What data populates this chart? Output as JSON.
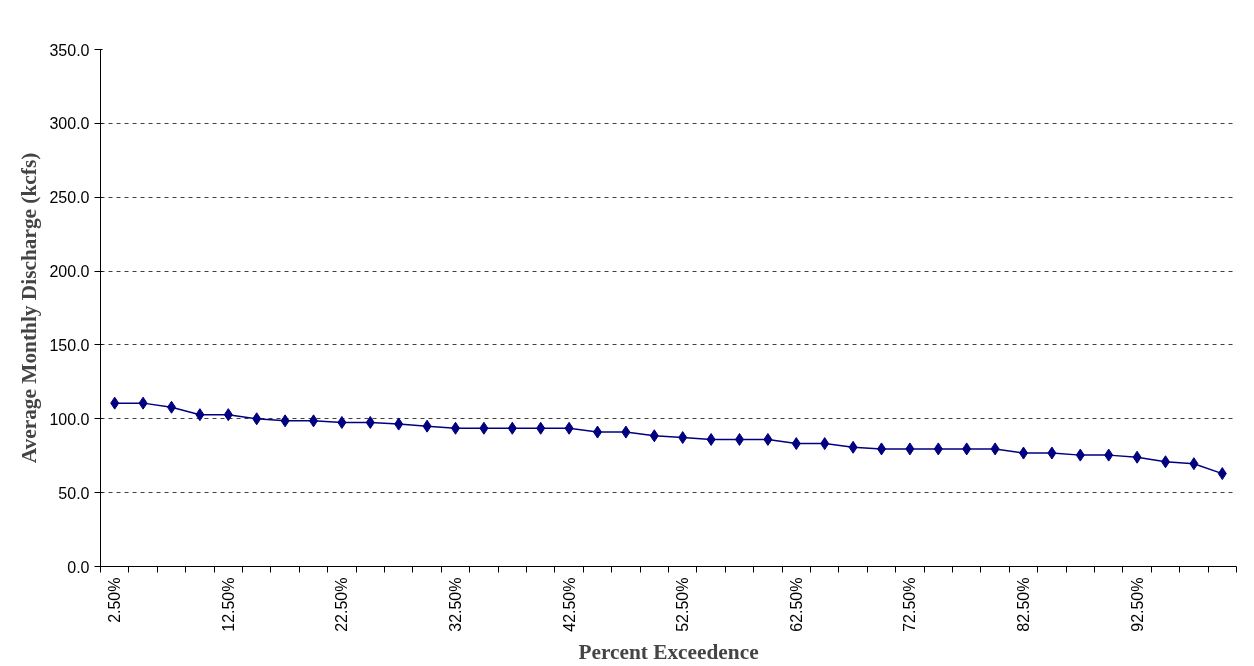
{
  "chart_data": {
    "type": "line",
    "xlabel": "Percent Exceedence",
    "ylabel": "Average Monthly Discharge (kcfs)",
    "categories": [
      "2.50%",
      null,
      null,
      null,
      "12.50%",
      null,
      null,
      null,
      "22.50%",
      null,
      null,
      null,
      "32.50%",
      null,
      null,
      null,
      "42.50%",
      null,
      null,
      null,
      "52.50%",
      null,
      null,
      null,
      "62.50%",
      null,
      null,
      null,
      "72.50%",
      null,
      null,
      null,
      "82.50%",
      null,
      null,
      null,
      "92.50%",
      null,
      null,
      null
    ],
    "series": [
      {
        "color": "#000080",
        "values": [
          110.6,
          110.6,
          107.8,
          102.8,
          102.8,
          100.0,
          98.6,
          98.6,
          97.5,
          97.5,
          96.4,
          95.0,
          93.6,
          93.6,
          93.6,
          93.6,
          93.6,
          91.0,
          91.0,
          88.5,
          87.3,
          86.0,
          86.0,
          86.0,
          83.2,
          83.2,
          80.7,
          79.6,
          79.6,
          79.6,
          79.6,
          79.6,
          76.8,
          76.8,
          75.4,
          75.4,
          74.0,
          70.9,
          69.6,
          62.9
        ]
      }
    ],
    "ylim": [
      0,
      350
    ],
    "yticks": [
      {
        "value": 0,
        "label": "0.0"
      },
      {
        "value": 50,
        "label": "50.0"
      },
      {
        "value": 100,
        "label": "100.0"
      },
      {
        "value": 150,
        "label": "150.0"
      },
      {
        "value": 200,
        "label": "200.0"
      },
      {
        "value": 250,
        "label": "250.0"
      },
      {
        "value": 300,
        "label": "300.0"
      },
      {
        "value": 350,
        "label": "350.0"
      }
    ],
    "grid": "y",
    "marker": "diamond",
    "line_style": "solid"
  }
}
